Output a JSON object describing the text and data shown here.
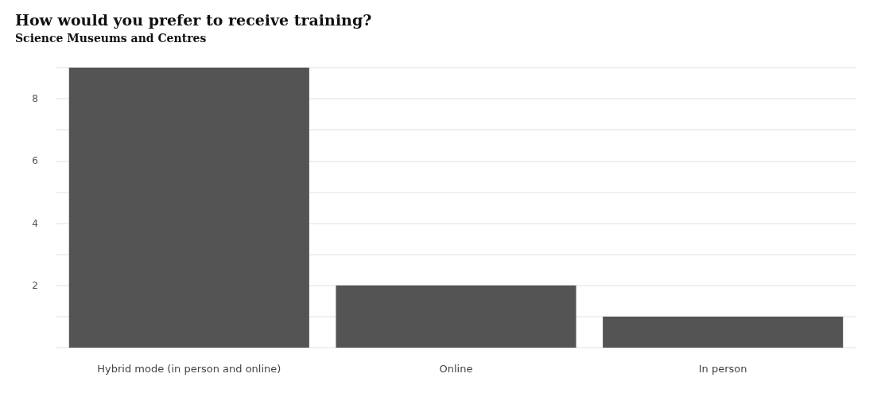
{
  "chart_data": {
    "type": "bar",
    "title": "How would you prefer to receive training?",
    "subtitle": "Science Museums and Centres",
    "categories": [
      "Hybrid mode (in person and online)",
      "Online",
      "In person"
    ],
    "values": [
      9,
      2,
      1
    ],
    "color": "#545454",
    "ylim": [
      0,
      9
    ],
    "yticks": [
      {
        "value": 0,
        "label": null
      },
      {
        "value": 1,
        "label": null
      },
      2,
      {
        "value": 3,
        "label": null
      },
      4,
      {
        "value": 5,
        "label": null
      },
      6,
      {
        "value": 7,
        "label": null
      },
      8,
      {
        "value": 9,
        "label": null
      }
    ],
    "grid": "y"
  }
}
